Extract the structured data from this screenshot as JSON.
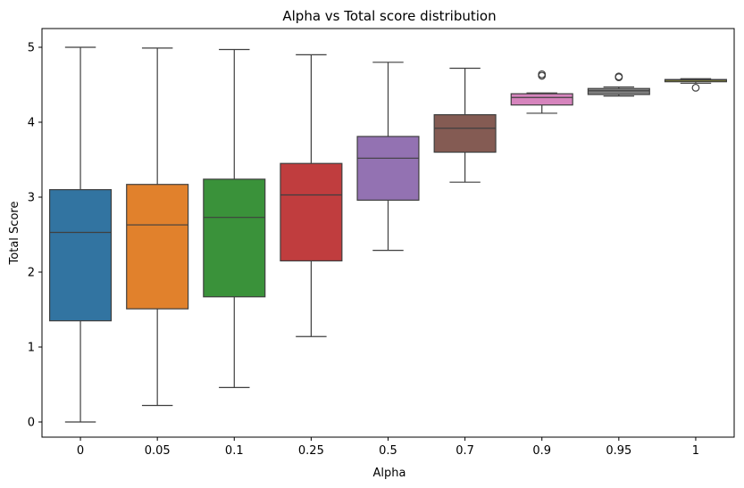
{
  "chart_data": {
    "type": "box",
    "title": "Alpha vs Total score distribution",
    "xlabel": "Alpha",
    "ylabel": "Total Score",
    "ylim": [
      -0.18,
      5.25
    ],
    "yticks": [
      0,
      1,
      2,
      3,
      4,
      5
    ],
    "categories": [
      "0",
      "0.05",
      "0.1",
      "0.25",
      "0.5",
      "0.7",
      "0.9",
      "0.95",
      "1"
    ],
    "colors": [
      "#3274a1",
      "#e1812c",
      "#3a923a",
      "#c03d3e",
      "#9372b2",
      "#845b53",
      "#d684bd",
      "#7f7f7f",
      "#a9aa35"
    ],
    "boxes": [
      {
        "whisker_low": 0.0,
        "q1": 1.35,
        "median": 2.53,
        "q3": 3.1,
        "whisker_high": 5.0,
        "outliers": []
      },
      {
        "whisker_low": 0.22,
        "q1": 1.51,
        "median": 2.63,
        "q3": 3.17,
        "whisker_high": 4.99,
        "outliers": []
      },
      {
        "whisker_low": 0.46,
        "q1": 1.67,
        "median": 2.73,
        "q3": 3.24,
        "whisker_high": 4.97,
        "outliers": []
      },
      {
        "whisker_low": 1.14,
        "q1": 2.15,
        "median": 3.03,
        "q3": 3.45,
        "whisker_high": 4.9,
        "outliers": []
      },
      {
        "whisker_low": 2.29,
        "q1": 2.96,
        "median": 3.52,
        "q3": 3.81,
        "whisker_high": 4.8,
        "outliers": []
      },
      {
        "whisker_low": 3.2,
        "q1": 3.6,
        "median": 3.92,
        "q3": 4.1,
        "whisker_high": 4.72,
        "outliers": []
      },
      {
        "whisker_low": 4.12,
        "q1": 4.23,
        "median": 4.33,
        "q3": 4.38,
        "whisker_high": 4.39,
        "outliers": [
          4.62,
          4.64
        ]
      },
      {
        "whisker_low": 4.35,
        "q1": 4.37,
        "median": 4.42,
        "q3": 4.45,
        "whisker_high": 4.47,
        "outliers": [
          4.6,
          4.61
        ]
      },
      {
        "whisker_low": 4.52,
        "q1": 4.54,
        "median": 4.56,
        "q3": 4.57,
        "whisker_high": 4.58,
        "outliers": [
          4.46
        ]
      }
    ],
    "grid": false,
    "legend": "none"
  }
}
